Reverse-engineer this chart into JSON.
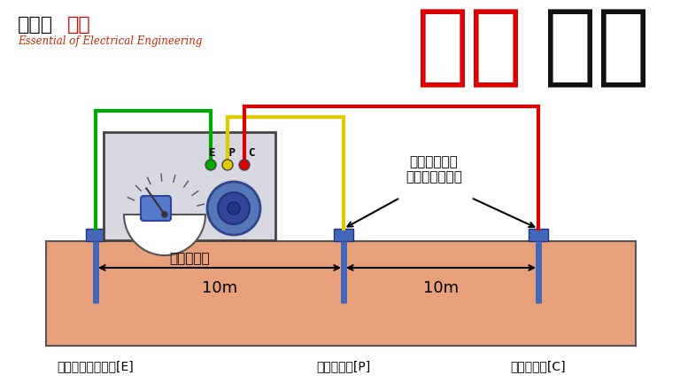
{
  "bg_color": "#ffffff",
  "title_red": "接地",
  "title_black": "工事",
  "logo_kanji": "電気の",
  "logo_red": "神髄",
  "logo_sub": "Essential of Electrical Engineering",
  "ground_color": "#E8A07A",
  "ground_edge": "#555555",
  "meter_color": "#d8d8e0",
  "meter_edge": "#444444",
  "electrode_color": "#4466BB",
  "wire_green": "#00AA00",
  "wire_yellow": "#DDCC00",
  "wire_red": "#DD0000",
  "label_e": "測定したい接地極[E]",
  "label_p": "補助接地極[P]",
  "label_c": "補助接地極[C]",
  "label_meter": "接地抵抗計",
  "annotation": "補助接地極を\n地中に打ち込む",
  "label_10m": "10m"
}
